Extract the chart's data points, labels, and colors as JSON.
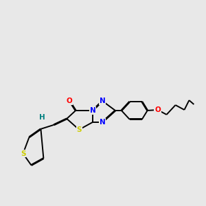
{
  "background_color": "#e8e8e8",
  "bond_color": "#000000",
  "lw": 1.4,
  "figsize": [
    3.0,
    3.0
  ],
  "dpi": 100,
  "atom_colors": {
    "O": "#ff0000",
    "N": "#0000ff",
    "S": "#cccc00",
    "H": "#008080",
    "C": "#000000"
  }
}
